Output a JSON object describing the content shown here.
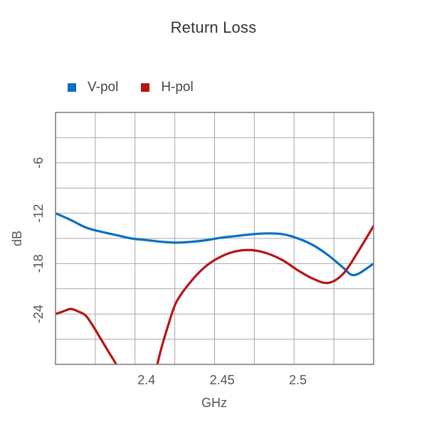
{
  "chart_data": {
    "type": "line",
    "title": "Return Loss",
    "xlabel": "GHz",
    "ylabel": "dB",
    "xlim": [
      2.34,
      2.55
    ],
    "ylim": [
      -30,
      0
    ],
    "grid": true,
    "legend_position": "top-left",
    "x_ticks": [
      2.4,
      2.45,
      2.5
    ],
    "x_tick_labels": [
      "2.4",
      "2.45",
      "2.5"
    ],
    "y_ticks": [
      -6,
      -12,
      -18,
      -24
    ],
    "y_tick_labels": [
      "-6",
      "-12",
      "-18",
      "-24"
    ],
    "series": [
      {
        "name": "V-pol",
        "color": "#0a6fc2",
        "x": [
          2.34,
          2.35,
          2.36,
          2.37,
          2.38,
          2.39,
          2.4,
          2.41,
          2.42,
          2.43,
          2.44,
          2.45,
          2.46,
          2.47,
          2.48,
          2.49,
          2.5,
          2.51,
          2.52,
          2.53,
          2.535,
          2.54,
          2.55
        ],
        "y": [
          -12.0,
          -12.8,
          -13.7,
          -14.2,
          -14.6,
          -15.0,
          -15.2,
          -15.4,
          -15.5,
          -15.4,
          -15.2,
          -14.9,
          -14.7,
          -14.5,
          -14.4,
          -14.5,
          -15.0,
          -15.8,
          -17.0,
          -18.5,
          -19.3,
          -19.2,
          -18.0
        ]
      },
      {
        "name": "H-pol",
        "color": "#b81414",
        "segments": [
          {
            "x": [
              2.34,
              2.345,
              2.35,
              2.355,
              2.36,
              2.365,
              2.37,
              2.375,
              2.38,
              2.385,
              2.39
            ],
            "y": [
              -24.0,
              -23.7,
              -23.4,
              -23.7,
              -24.2,
              -25.5,
              -27.0,
              -28.5,
              -30.0,
              -32.0,
              -34.0
            ]
          },
          {
            "x": [
              2.4,
              2.405,
              2.41,
              2.415,
              2.42,
              2.43,
              2.44,
              2.45,
              2.46,
              2.47,
              2.48,
              2.49,
              2.5,
              2.51,
              2.52,
              2.53,
              2.54,
              2.55
            ],
            "y": [
              -34.0,
              -31.5,
              -28.0,
              -25.0,
              -22.5,
              -20.0,
              -18.2,
              -17.1,
              -16.5,
              -16.4,
              -16.8,
              -17.6,
              -18.8,
              -19.8,
              -20.3,
              -19.2,
              -16.5,
              -13.5
            ]
          }
        ]
      }
    ]
  }
}
